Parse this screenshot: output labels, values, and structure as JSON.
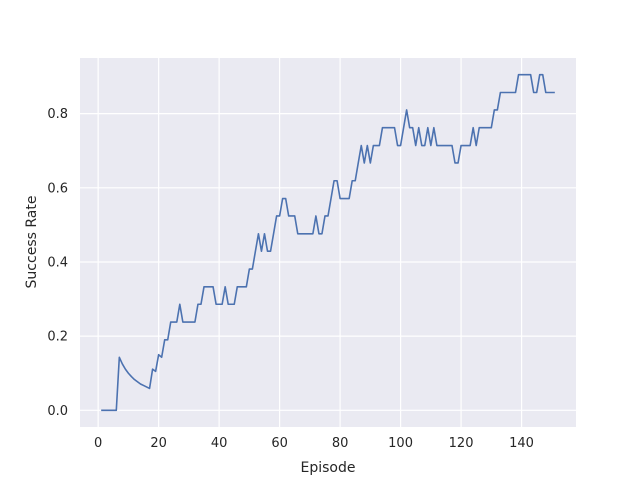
{
  "chart_data": {
    "type": "line",
    "title": "",
    "xlabel": "Episode",
    "ylabel": "Success Rate",
    "xlim": [
      -6,
      158
    ],
    "ylim": [
      -0.045,
      0.95
    ],
    "xticks": [
      0,
      20,
      40,
      60,
      80,
      100,
      120,
      140
    ],
    "yticks": [
      0.0,
      0.2,
      0.4,
      0.6,
      0.8
    ],
    "ytick_labels": [
      "0.0",
      "0.2",
      "0.4",
      "0.6",
      "0.8"
    ],
    "grid": true,
    "background": "#eaeaf2",
    "grid_color": "#ffffff",
    "line_color": "#4c72b0",
    "series": [
      {
        "x": [
          1,
          2,
          3,
          4,
          5,
          6,
          7,
          8,
          9,
          10,
          11,
          12,
          13,
          14,
          15,
          16,
          17,
          18,
          19,
          20,
          21,
          22,
          23,
          24,
          25,
          26,
          27,
          28,
          29,
          30,
          31,
          32,
          33,
          34,
          35,
          36,
          37,
          38,
          39,
          40,
          41,
          42,
          43,
          44,
          45,
          46,
          47,
          48,
          49,
          50,
          51,
          52,
          53,
          54,
          55,
          56,
          57,
          58,
          59,
          60,
          61,
          62,
          63,
          64,
          65,
          66,
          67,
          68,
          69,
          70,
          71,
          72,
          73,
          74,
          75,
          76,
          77,
          78,
          79,
          80,
          81,
          82,
          83,
          84,
          85,
          86,
          87,
          88,
          89,
          90,
          91,
          92,
          93,
          94,
          95,
          96,
          97,
          98,
          99,
          100,
          101,
          102,
          103,
          104,
          105,
          106,
          107,
          108,
          109,
          110,
          111,
          112,
          113,
          114,
          115,
          116,
          117,
          118,
          119,
          120,
          121,
          122,
          123,
          124,
          125,
          126,
          127,
          128,
          129,
          130,
          131,
          132,
          133,
          134,
          135,
          136,
          137,
          138,
          139,
          140,
          141,
          142,
          143,
          144,
          145,
          146,
          147,
          148,
          149,
          150,
          151
        ],
        "y": [
          0.0,
          0.0,
          0.0,
          0.0,
          0.0,
          0.0,
          0.143,
          0.125,
          0.111,
          0.1,
          0.091,
          0.083,
          0.077,
          0.071,
          0.067,
          0.063,
          0.059,
          0.111,
          0.105,
          0.15,
          0.143,
          0.19,
          0.19,
          0.238,
          0.238,
          0.238,
          0.286,
          0.238,
          0.238,
          0.238,
          0.238,
          0.238,
          0.286,
          0.286,
          0.333,
          0.333,
          0.333,
          0.333,
          0.286,
          0.286,
          0.286,
          0.333,
          0.286,
          0.286,
          0.286,
          0.333,
          0.333,
          0.333,
          0.333,
          0.381,
          0.381,
          0.429,
          0.476,
          0.429,
          0.476,
          0.429,
          0.429,
          0.476,
          0.524,
          0.524,
          0.571,
          0.571,
          0.524,
          0.524,
          0.524,
          0.476,
          0.476,
          0.476,
          0.476,
          0.476,
          0.476,
          0.524,
          0.476,
          0.476,
          0.524,
          0.524,
          0.571,
          0.619,
          0.619,
          0.571,
          0.571,
          0.571,
          0.571,
          0.619,
          0.619,
          0.667,
          0.714,
          0.667,
          0.714,
          0.667,
          0.714,
          0.714,
          0.714,
          0.762,
          0.762,
          0.762,
          0.762,
          0.762,
          0.714,
          0.714,
          0.762,
          0.81,
          0.762,
          0.762,
          0.714,
          0.762,
          0.714,
          0.714,
          0.762,
          0.714,
          0.762,
          0.714,
          0.714,
          0.714,
          0.714,
          0.714,
          0.714,
          0.667,
          0.667,
          0.714,
          0.714,
          0.714,
          0.714,
          0.762,
          0.714,
          0.762,
          0.762,
          0.762,
          0.762,
          0.762,
          0.81,
          0.81,
          0.857,
          0.857,
          0.857,
          0.857,
          0.857,
          0.857,
          0.905,
          0.905,
          0.905,
          0.905,
          0.905,
          0.857,
          0.857,
          0.905,
          0.905,
          0.857,
          0.857,
          0.857,
          0.857
        ]
      }
    ]
  }
}
